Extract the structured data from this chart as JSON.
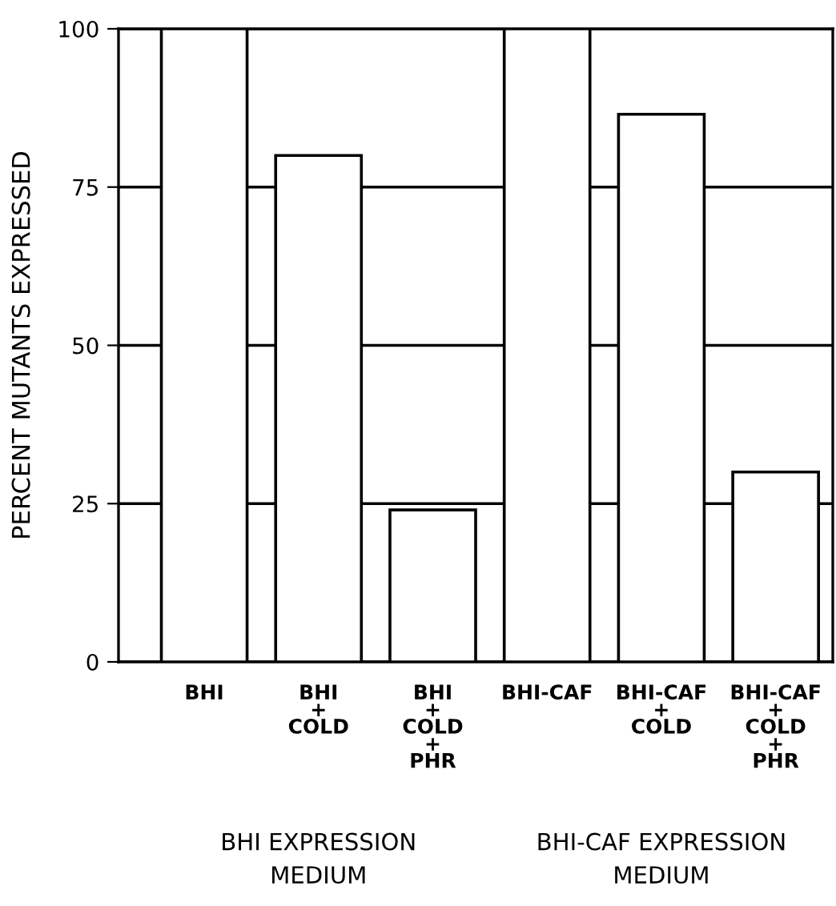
{
  "chart_data": {
    "type": "bar",
    "ylabel": "PERCENT MUTANTS EXPRESSED",
    "categories": [
      "BHI",
      "BHI\n+\nCOLD",
      "BHI\n+\nCOLD\n+\nPHR",
      "BHI-CAF",
      "BHI-CAF\n+\nCOLD",
      "BHI-CAF\n+\nCOLD\n+\nPHR"
    ],
    "values": [
      100,
      80,
      24,
      100,
      86.5,
      30
    ],
    "color": "#ffffff",
    "ylim": [
      0,
      100
    ],
    "yticks": [
      0,
      25,
      50,
      75,
      100
    ],
    "grid": "y",
    "annotations": [
      "BHI EXPRESSION\nMEDIUM",
      "BHI-CAF EXPRESSION\nMEDIUM"
    ]
  }
}
